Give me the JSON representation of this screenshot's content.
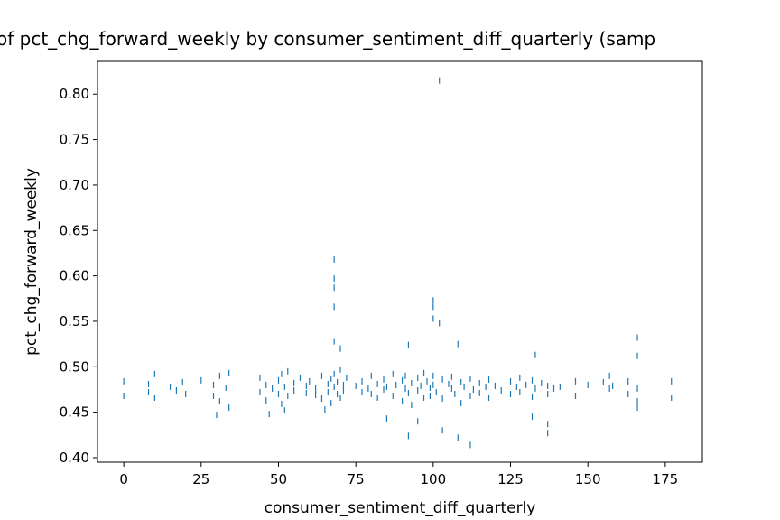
{
  "chart_data": {
    "type": "scatter",
    "title": "of pct_chg_forward_weekly by consumer_sentiment_diff_quarterly (samp",
    "x_label": "consumer_sentiment_diff_quarterly",
    "y_label": "pct_chg_forward_weekly",
    "color": "#1f77b4",
    "xlim": [
      -8.5,
      187
    ],
    "ylim": [
      0.395,
      0.836
    ],
    "xticks": [
      0,
      25,
      50,
      75,
      100,
      125,
      150,
      175
    ],
    "yticks": [
      {
        "value": 0.4,
        "label": "0.40"
      },
      0.45,
      {
        "value": 0.5,
        "label": "0.50"
      },
      0.55,
      {
        "value": 0.6,
        "label": "0.60"
      },
      0.65,
      {
        "value": 0.7,
        "label": "0.70"
      },
      0.75,
      {
        "value": 0.8,
        "label": "0.80"
      }
    ],
    "grid": false,
    "x": [
      0,
      0,
      8,
      8,
      10,
      10,
      15,
      17,
      19,
      20,
      25,
      29,
      29,
      31,
      31,
      33,
      34,
      34,
      44,
      44,
      46,
      46,
      48,
      50,
      50,
      51,
      51,
      52,
      53,
      53,
      55,
      55,
      57,
      59,
      59,
      60,
      62,
      62,
      64,
      64,
      66,
      66,
      67,
      67,
      68,
      68,
      69,
      69,
      70,
      70,
      71,
      71,
      72,
      75,
      77,
      77,
      79,
      80,
      80,
      82,
      82,
      84,
      84,
      85,
      87,
      87,
      88,
      90,
      90,
      91,
      91,
      92,
      93,
      93,
      95,
      95,
      96,
      97,
      97,
      98,
      99,
      99,
      100,
      100,
      101,
      103,
      103,
      105,
      106,
      106,
      107,
      109,
      109,
      110,
      112,
      112,
      113,
      115,
      115,
      117,
      118,
      118,
      120,
      122,
      125,
      125,
      127,
      128,
      128,
      130,
      132,
      132,
      133,
      135,
      137,
      137,
      139,
      141,
      146,
      146,
      150,
      155,
      157,
      157,
      158,
      163,
      163,
      166,
      166,
      177,
      177,
      102,
      68,
      68,
      68,
      68,
      100,
      100,
      100,
      102,
      68,
      70,
      108,
      92,
      133,
      166,
      166,
      112,
      92,
      108,
      137,
      95,
      137,
      85,
      30,
      132,
      47,
      166,
      65,
      52,
      103
    ],
    "values": [
      0.484,
      0.468,
      0.481,
      0.472,
      0.492,
      0.466,
      0.478,
      0.474,
      0.483,
      0.47,
      0.485,
      0.48,
      0.468,
      0.49,
      0.462,
      0.477,
      0.493,
      0.455,
      0.488,
      0.472,
      0.48,
      0.463,
      0.476,
      0.485,
      0.47,
      0.492,
      0.459,
      0.478,
      0.495,
      0.468,
      0.482,
      0.474,
      0.488,
      0.479,
      0.471,
      0.484,
      0.476,
      0.469,
      0.49,
      0.465,
      0.481,
      0.472,
      0.487,
      0.46,
      0.478,
      0.492,
      0.47,
      0.483,
      0.497,
      0.466,
      0.48,
      0.474,
      0.488,
      0.479,
      0.484,
      0.472,
      0.476,
      0.49,
      0.47,
      0.481,
      0.466,
      0.486,
      0.475,
      0.478,
      0.492,
      0.468,
      0.48,
      0.485,
      0.462,
      0.476,
      0.49,
      0.471,
      0.482,
      0.458,
      0.488,
      0.474,
      0.479,
      0.493,
      0.466,
      0.484,
      0.477,
      0.468,
      0.49,
      0.48,
      0.472,
      0.486,
      0.465,
      0.481,
      0.476,
      0.489,
      0.47,
      0.483,
      0.46,
      0.478,
      0.487,
      0.468,
      0.475,
      0.482,
      0.471,
      0.478,
      0.486,
      0.466,
      0.479,
      0.474,
      0.484,
      0.47,
      0.478,
      0.488,
      0.472,
      0.48,
      0.485,
      0.467,
      0.476,
      0.482,
      0.479,
      0.47,
      0.476,
      0.478,
      0.484,
      0.468,
      0.48,
      0.483,
      0.49,
      0.476,
      0.479,
      0.484,
      0.47,
      0.476,
      0.462,
      0.484,
      0.466,
      0.815,
      0.618,
      0.597,
      0.587,
      0.566,
      0.573,
      0.566,
      0.553,
      0.548,
      0.528,
      0.52,
      0.525,
      0.524,
      0.513,
      0.532,
      0.512,
      0.414,
      0.424,
      0.422,
      0.427,
      0.44,
      0.437,
      0.443,
      0.447,
      0.445,
      0.448,
      0.455,
      0.453,
      0.452,
      0.43
    ]
  }
}
